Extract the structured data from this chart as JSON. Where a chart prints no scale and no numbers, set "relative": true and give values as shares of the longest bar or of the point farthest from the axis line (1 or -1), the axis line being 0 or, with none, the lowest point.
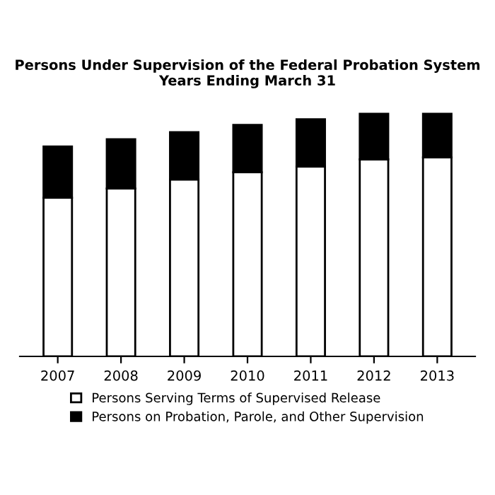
{
  "chart_data": {
    "type": "bar",
    "title": "Persons Under Supervision of the Federal Probation System\nYears Ending March 31",
    "categories": [
      "2007",
      "2008",
      "2009",
      "2010",
      "2011",
      "2012",
      "2013"
    ],
    "stacked": true,
    "relative": true,
    "legend": "bottom",
    "grid": false,
    "series": [
      {
        "name": "Persons Serving Terms of Supervised Release",
        "color": "#ffffff",
        "values": [
          0.654,
          0.692,
          0.729,
          0.759,
          0.782,
          0.812,
          0.82
        ]
      },
      {
        "name": "Persons on Probation, Parole, and Other Supervision",
        "color": "#000000",
        "values": [
          0.211,
          0.203,
          0.195,
          0.195,
          0.195,
          0.188,
          0.18
        ]
      }
    ]
  }
}
